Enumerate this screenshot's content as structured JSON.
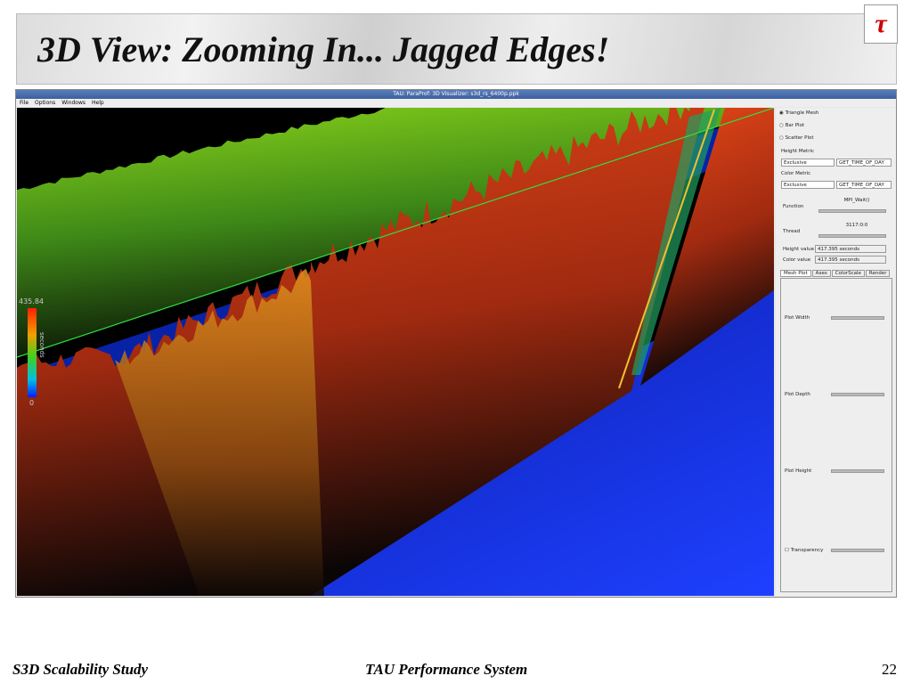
{
  "slide": {
    "title": "3D View: Zooming In... Jagged Edges!",
    "logo": "τ",
    "footer": {
      "left": "S3D Scalability Study",
      "center": "TAU Performance System",
      "page": "22"
    }
  },
  "window": {
    "title": "TAU: ParaProf: 3D Visualizer: s3d_rs_6400p.ppk",
    "menu": [
      "File",
      "Options",
      "Windows",
      "Help"
    ]
  },
  "view": {
    "scale_max": "435.84",
    "scale_unit": "seconds",
    "scale_min": "0"
  },
  "panel": {
    "plot_types": [
      "Triangle Mesh",
      "Bar Plot",
      "Scatter Plot"
    ],
    "height_metric": {
      "label": "Height Metric",
      "value": "Exclusive",
      "metric": "GET_TIME_OF_DAY"
    },
    "color_metric": {
      "label": "Color Metric",
      "value": "Exclusive",
      "metric": "GET_TIME_OF_DAY"
    },
    "function": {
      "label": "Function",
      "value": "MPI_Wait()"
    },
    "thread": {
      "label": "Thread",
      "value": "3117:0:0"
    },
    "height_value": {
      "label": "Height value",
      "value": "417.395 seconds"
    },
    "color_value": {
      "label": "Color value",
      "value": "417.395 seconds"
    },
    "tabs": [
      "Mesh Plot",
      "Axes",
      "ColorScale",
      "Render"
    ],
    "sliders": [
      "Plot Width",
      "Plot Depth",
      "Plot Height"
    ],
    "transparency": "Transparency"
  }
}
